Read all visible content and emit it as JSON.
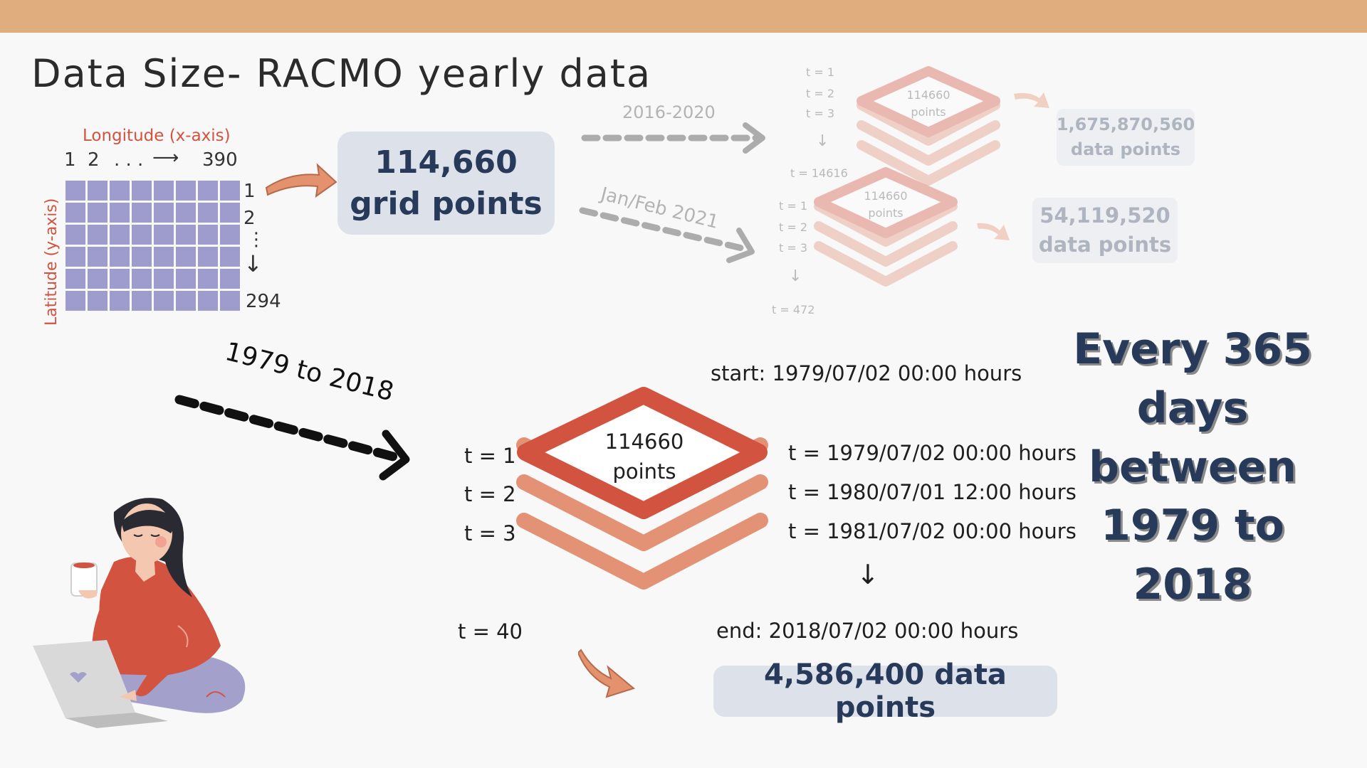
{
  "title": "Data Size- RACMO yearly data",
  "grid": {
    "longitude_label": "Longitude (x-axis)",
    "latitude_label": "Latitude (y-axis)",
    "x_start": "1",
    "x_second": "2",
    "x_dots": ". . .",
    "x_arrow": "⟶",
    "x_end": "390",
    "y_start": "1",
    "y_second": "2",
    "y_dots": "⋮",
    "y_arrow": "↓",
    "y_end": "294"
  },
  "grid_points": {
    "value": "114,660",
    "label": "grid points"
  },
  "period_2016": {
    "label": "2016-2020",
    "t1": "t = 1",
    "t2": "t = 2",
    "t3": "t = 3",
    "arrow": "↓",
    "t_end": "t = 14616",
    "stack_value": "114660",
    "stack_unit": "points",
    "result_value": "1,675,870,560",
    "result_label": "data points"
  },
  "period_2021": {
    "label": "Jan/Feb 2021",
    "t1": "t = 1",
    "t2": "t = 2",
    "t3": "t = 3",
    "arrow": "↓",
    "t_end": "t = 472",
    "stack_value": "114660",
    "stack_unit": "points",
    "result_value": "54,119,520",
    "result_label": "data points"
  },
  "period_main": {
    "label": "1979 to 2018",
    "start": "start: 1979/07/02  00:00 hours",
    "t1": "t = 1",
    "t2": "t = 2",
    "t3": "t = 3",
    "t_end": "t = 40",
    "stack_value": "114660",
    "stack_unit": "points",
    "time1": "t = 1979/07/02 00:00 hours",
    "time2": "t = 1980/07/01 12:00 hours",
    "time3": "t = 1981/07/02 00:00 hours",
    "arrow": "↓",
    "end": "end: 2018/07/02 00:00 hours",
    "total": "4,586,400 data points"
  },
  "every_text": "Every 365 days between 1979 to 2018",
  "colors": {
    "top_bar": "#dfad7e",
    "accent_red": "#d2533f",
    "layer_salmon": "#e39276",
    "grid_cell": "#9e9ccc",
    "pill_bg": "#dde1ea",
    "navy_text": "#273a5a"
  },
  "icons": {
    "curved_arrow": "curved-arrow-icon",
    "dashed_arrow": "dashed-arrow-icon",
    "illustration": "woman-with-laptop-illustration"
  }
}
